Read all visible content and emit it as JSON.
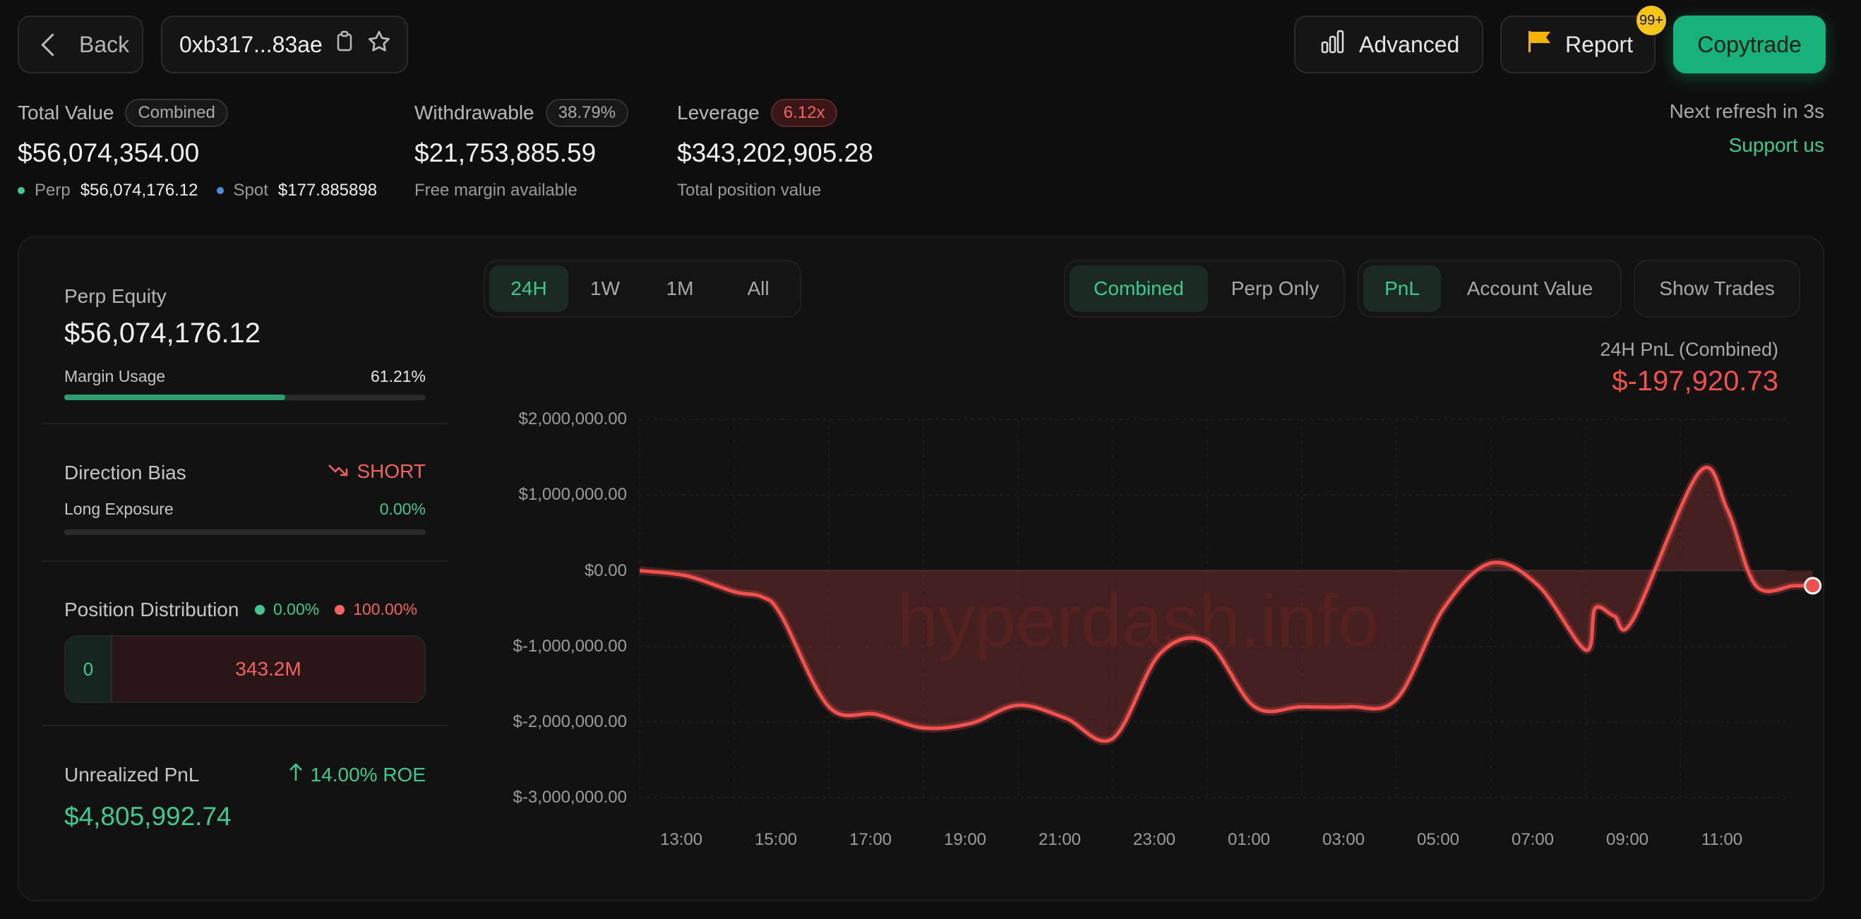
{
  "header": {
    "back_label": "Back",
    "address": "0xb317...83ae",
    "advanced_label": "Advanced",
    "report_label": "Report",
    "report_badge": "99+",
    "copytrade_label": "Copytrade"
  },
  "stats": {
    "total_value_label": "Total Value",
    "total_value_pill": "Combined",
    "total_value": "$56,074,354.00",
    "perp_label": "Perp",
    "perp_value": "$56,074,176.12",
    "spot_label": "Spot",
    "spot_value": "$177.885898",
    "withdrawable_label": "Withdrawable",
    "withdrawable_pct": "38.79%",
    "withdrawable_value": "$21,753,885.59",
    "withdrawable_sub": "Free margin available",
    "leverage_label": "Leverage",
    "leverage_pill": "6.12x",
    "leverage_value": "$343,202,905.28",
    "leverage_sub": "Total position value",
    "refresh_text": "Next refresh in 3s",
    "support_link": "Support us"
  },
  "left_panel": {
    "perp_equity_label": "Perp Equity",
    "perp_equity_value": "$56,074,176.12",
    "margin_usage_label": "Margin Usage",
    "margin_usage_pct": "61.21%",
    "margin_usage_fraction": 0.6121,
    "direction_bias_label": "Direction Bias",
    "direction_bias_value": "SHORT",
    "long_exposure_label": "Long Exposure",
    "long_exposure_pct": "0.00%",
    "long_exposure_fraction": 0.0,
    "position_distribution_label": "Position Distribution",
    "dist_long_pct": "0.00%",
    "dist_short_pct": "100.00%",
    "dist_long_value": "0",
    "dist_short_value": "343.2M",
    "unrealized_pnl_label": "Unrealized PnL",
    "roe_text": "14.00% ROE",
    "unrealized_pnl_value": "$4,805,992.74"
  },
  "chart_controls": {
    "ranges": [
      "24H",
      "1W",
      "1M",
      "All"
    ],
    "active_range": "24H",
    "modes": [
      "Combined",
      "Perp Only"
    ],
    "active_mode": "Combined",
    "metrics": [
      "PnL",
      "Account Value"
    ],
    "active_metric": "PnL",
    "show_trades_label": "Show Trades"
  },
  "chart_header": {
    "label": "24H PnL (Combined)",
    "value": "$-197,920.73"
  },
  "watermark": "hyperdash.info",
  "colors": {
    "accent_green": "#3fc98f",
    "copytrade_bg": "#17b27a",
    "loss_red": "#f0514f",
    "badge_yellow": "#f5c518"
  },
  "chart_data": {
    "type": "area",
    "ylim": [
      -3000000,
      2000000
    ],
    "yticks": [
      "$2,000,000.00",
      "$1,000,000.00",
      "$0.00",
      "$-1,000,000.00",
      "$-2,000,000.00",
      "$-3,000,000.00"
    ],
    "xticks": [
      "13:00",
      "15:00",
      "17:00",
      "19:00",
      "21:00",
      "23:00",
      "01:00",
      "03:00",
      "05:00",
      "07:00",
      "09:00",
      "11:00"
    ],
    "x": [
      0,
      0.5,
      1.0,
      1.3,
      1.5,
      2.0,
      2.5,
      3.0,
      3.5,
      4.0,
      4.5,
      5.0,
      5.5,
      6.0,
      6.5,
      7.0,
      7.5,
      8.0,
      8.5,
      9.0,
      9.5,
      10.0,
      10.1,
      10.3,
      10.5,
      11.2,
      11.5,
      11.8,
      12.2,
      12.4
    ],
    "values": [
      0,
      -70000,
      -280000,
      -350000,
      -600000,
      -1800000,
      -1900000,
      -2080000,
      -2020000,
      -1780000,
      -1950000,
      -2220000,
      -1100000,
      -950000,
      -1800000,
      -1800000,
      -1800000,
      -1700000,
      -500000,
      100000,
      -200000,
      -1050000,
      -500000,
      -600000,
      -650000,
      1300000,
      800000,
      -200000,
      -200000,
      -200000
    ],
    "title": "24H PnL (Combined)"
  }
}
